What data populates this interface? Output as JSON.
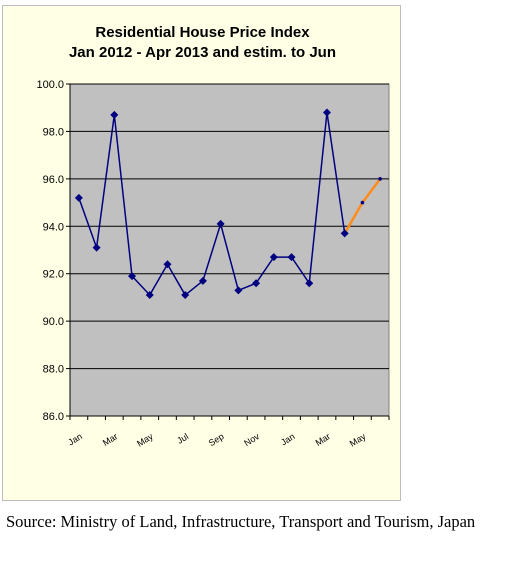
{
  "chart_data": {
    "type": "line",
    "title_lines": [
      "Residential House Price Index",
      "Jan 2012 - Apr 2013 and estim. to Jun"
    ],
    "categories": [
      "Jan",
      "",
      "Mar",
      "",
      "May",
      "",
      "Jul",
      "",
      "Sep",
      "",
      "Nov",
      "",
      "Jan",
      "",
      "Mar",
      "",
      "May",
      ""
    ],
    "series": [
      {
        "values": [
          95.2,
          93.1,
          98.7,
          91.9,
          91.1,
          92.4,
          91.1,
          91.7,
          94.1,
          91.3,
          91.6,
          92.7,
          92.7,
          91.6,
          98.8,
          93.7,
          null,
          null
        ],
        "color": "#000080"
      },
      {
        "values": [
          null,
          null,
          null,
          null,
          null,
          null,
          null,
          null,
          null,
          null,
          null,
          null,
          null,
          null,
          null,
          93.7,
          95.0,
          96.0
        ],
        "color": "#ff8c1a"
      }
    ],
    "ylim": [
      86.0,
      100.0
    ],
    "yticks": [
      "86.0",
      "88.0",
      "90.0",
      "92.0",
      "94.0",
      "96.0",
      "98.0",
      "100.0"
    ],
    "grid": true,
    "legend": "none",
    "plot_background": "#c0c0c0",
    "chart_background": "#ffffe6"
  },
  "source": "Source: Ministry of Land, Infrastructure, Transport and Tourism, Japan"
}
